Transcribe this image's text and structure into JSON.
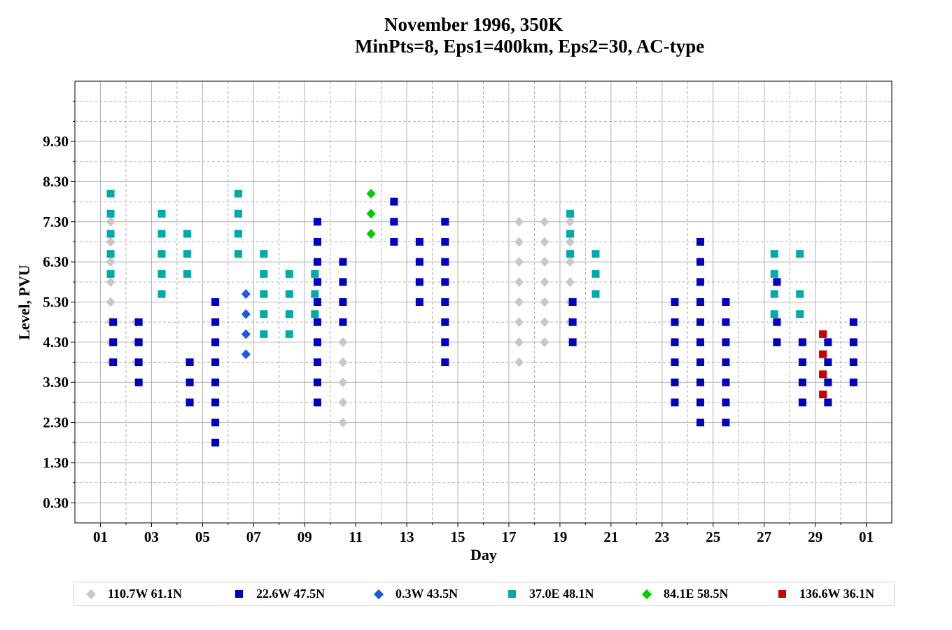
{
  "chart_data": {
    "type": "scatter",
    "title": "November 1996, 350K",
    "subtitle": "MinPts=8, Eps1=400km, Eps2=30, AC-type",
    "xlabel": "Day",
    "ylabel": "Level, PVU",
    "xlim": [
      0.0,
      32.0
    ],
    "ylim": [
      -0.2,
      10.8
    ],
    "xticks": [
      "01",
      "03",
      "05",
      "07",
      "09",
      "11",
      "13",
      "15",
      "17",
      "19",
      "21",
      "23",
      "25",
      "27",
      "29",
      "01"
    ],
    "xtick_values": [
      1,
      3,
      5,
      7,
      9,
      11,
      13,
      15,
      17,
      19,
      21,
      23,
      25,
      27,
      29,
      31
    ],
    "yticks": [
      "0.30",
      "1.30",
      "2.30",
      "3.30",
      "4.30",
      "5.30",
      "6.30",
      "7.30",
      "8.30",
      "9.30"
    ],
    "ytick_values": [
      0.3,
      1.3,
      2.3,
      3.3,
      4.3,
      5.3,
      6.3,
      7.3,
      8.3,
      9.3
    ],
    "minor_ytick_values": [
      0.8,
      1.8,
      2.8,
      3.8,
      4.8,
      5.8,
      6.8,
      7.8,
      8.8,
      9.8,
      10.3
    ],
    "grid": true,
    "legend_position": "bottom",
    "series": [
      {
        "name": "110.7W 61.1N",
        "color": "#c8c8c8",
        "marker": "diamond",
        "points": [
          [
            1.4,
            3.8
          ],
          [
            1.4,
            4.3
          ],
          [
            1.4,
            4.8
          ],
          [
            1.4,
            5.3
          ],
          [
            1.4,
            5.8
          ],
          [
            1.4,
            6.3
          ],
          [
            1.4,
            6.8
          ],
          [
            1.4,
            7.3
          ],
          [
            2.4,
            3.8
          ],
          [
            2.4,
            4.3
          ],
          [
            2.4,
            4.8
          ],
          [
            10.5,
            2.3
          ],
          [
            10.5,
            2.8
          ],
          [
            10.5,
            3.3
          ],
          [
            10.5,
            3.8
          ],
          [
            10.5,
            4.3
          ],
          [
            17.4,
            3.8
          ],
          [
            17.4,
            4.3
          ],
          [
            17.4,
            4.8
          ],
          [
            17.4,
            5.3
          ],
          [
            17.4,
            5.8
          ],
          [
            17.4,
            6.3
          ],
          [
            17.4,
            6.8
          ],
          [
            17.4,
            7.3
          ],
          [
            18.4,
            4.3
          ],
          [
            18.4,
            4.8
          ],
          [
            18.4,
            5.3
          ],
          [
            18.4,
            5.8
          ],
          [
            18.4,
            6.3
          ],
          [
            18.4,
            6.8
          ],
          [
            18.4,
            7.3
          ],
          [
            19.4,
            4.8
          ],
          [
            19.4,
            5.3
          ],
          [
            19.4,
            5.8
          ],
          [
            19.4,
            6.3
          ],
          [
            19.4,
            6.8
          ],
          [
            19.4,
            7.3
          ]
        ]
      },
      {
        "name": "22.6W 47.5N",
        "color": "#0000c0",
        "marker": "square",
        "points": [
          [
            1.5,
            3.8
          ],
          [
            1.5,
            4.3
          ],
          [
            1.5,
            4.8
          ],
          [
            2.5,
            3.3
          ],
          [
            2.5,
            3.8
          ],
          [
            2.5,
            4.3
          ],
          [
            2.5,
            4.8
          ],
          [
            4.5,
            2.8
          ],
          [
            4.5,
            3.3
          ],
          [
            4.5,
            3.8
          ],
          [
            5.5,
            1.8
          ],
          [
            5.5,
            2.3
          ],
          [
            5.5,
            2.8
          ],
          [
            5.5,
            3.3
          ],
          [
            5.5,
            3.8
          ],
          [
            5.5,
            4.3
          ],
          [
            5.5,
            4.8
          ],
          [
            5.5,
            5.3
          ],
          [
            9.5,
            2.8
          ],
          [
            9.5,
            3.3
          ],
          [
            9.5,
            3.8
          ],
          [
            9.5,
            4.3
          ],
          [
            9.5,
            4.8
          ],
          [
            9.5,
            5.3
          ],
          [
            9.5,
            5.8
          ],
          [
            9.5,
            6.3
          ],
          [
            9.5,
            6.8
          ],
          [
            9.5,
            7.3
          ],
          [
            10.5,
            4.8
          ],
          [
            10.5,
            5.3
          ],
          [
            10.5,
            5.8
          ],
          [
            10.5,
            6.3
          ],
          [
            12.5,
            6.8
          ],
          [
            12.5,
            7.3
          ],
          [
            12.5,
            7.8
          ],
          [
            13.5,
            5.3
          ],
          [
            13.5,
            5.8
          ],
          [
            13.5,
            6.3
          ],
          [
            13.5,
            6.8
          ],
          [
            14.5,
            3.8
          ],
          [
            14.5,
            4.3
          ],
          [
            14.5,
            4.8
          ],
          [
            14.5,
            5.3
          ],
          [
            14.5,
            5.8
          ],
          [
            14.5,
            6.3
          ],
          [
            14.5,
            6.8
          ],
          [
            14.5,
            7.3
          ],
          [
            19.5,
            4.3
          ],
          [
            19.5,
            4.8
          ],
          [
            19.5,
            5.3
          ],
          [
            23.5,
            2.8
          ],
          [
            23.5,
            3.3
          ],
          [
            23.5,
            3.8
          ],
          [
            23.5,
            4.3
          ],
          [
            23.5,
            4.8
          ],
          [
            23.5,
            5.3
          ],
          [
            24.5,
            2.3
          ],
          [
            24.5,
            2.8
          ],
          [
            24.5,
            3.3
          ],
          [
            24.5,
            3.8
          ],
          [
            24.5,
            4.3
          ],
          [
            24.5,
            4.8
          ],
          [
            24.5,
            5.3
          ],
          [
            24.5,
            5.8
          ],
          [
            24.5,
            6.3
          ],
          [
            24.5,
            6.8
          ],
          [
            25.5,
            2.3
          ],
          [
            25.5,
            2.8
          ],
          [
            25.5,
            3.3
          ],
          [
            25.5,
            3.8
          ],
          [
            25.5,
            4.3
          ],
          [
            25.5,
            4.8
          ],
          [
            25.5,
            5.3
          ],
          [
            27.5,
            4.3
          ],
          [
            27.5,
            4.8
          ],
          [
            27.5,
            5.8
          ],
          [
            28.5,
            2.8
          ],
          [
            28.5,
            3.3
          ],
          [
            28.5,
            3.8
          ],
          [
            28.5,
            4.3
          ],
          [
            29.5,
            2.8
          ],
          [
            29.5,
            3.3
          ],
          [
            29.5,
            3.8
          ],
          [
            29.5,
            4.3
          ],
          [
            30.5,
            3.3
          ],
          [
            30.5,
            3.8
          ],
          [
            30.5,
            4.3
          ],
          [
            30.5,
            4.8
          ]
        ]
      },
      {
        "name": "0.3W 43.5N",
        "color": "#1a5ae0",
        "marker": "diamond",
        "points": [
          [
            6.7,
            4.0
          ],
          [
            6.7,
            4.5
          ],
          [
            6.7,
            5.0
          ],
          [
            6.7,
            5.5
          ]
        ]
      },
      {
        "name": "37.0E 48.1N",
        "color": "#00aaaa",
        "marker": "square",
        "points": [
          [
            1.4,
            6.0
          ],
          [
            1.4,
            6.5
          ],
          [
            1.4,
            7.0
          ],
          [
            1.4,
            7.5
          ],
          [
            1.4,
            8.0
          ],
          [
            3.4,
            5.5
          ],
          [
            3.4,
            6.0
          ],
          [
            3.4,
            6.5
          ],
          [
            3.4,
            7.0
          ],
          [
            3.4,
            7.5
          ],
          [
            4.4,
            6.0
          ],
          [
            4.4,
            6.5
          ],
          [
            4.4,
            7.0
          ],
          [
            6.4,
            6.5
          ],
          [
            6.4,
            7.0
          ],
          [
            6.4,
            7.5
          ],
          [
            6.4,
            8.0
          ],
          [
            7.4,
            4.5
          ],
          [
            7.4,
            5.0
          ],
          [
            7.4,
            5.5
          ],
          [
            7.4,
            6.0
          ],
          [
            7.4,
            6.5
          ],
          [
            8.4,
            4.5
          ],
          [
            8.4,
            5.0
          ],
          [
            8.4,
            5.5
          ],
          [
            8.4,
            6.0
          ],
          [
            9.4,
            5.0
          ],
          [
            9.4,
            5.5
          ],
          [
            9.4,
            6.0
          ],
          [
            19.4,
            6.5
          ],
          [
            19.4,
            7.0
          ],
          [
            19.4,
            7.5
          ],
          [
            20.4,
            5.5
          ],
          [
            20.4,
            6.0
          ],
          [
            20.4,
            6.5
          ],
          [
            27.4,
            5.0
          ],
          [
            27.4,
            5.5
          ],
          [
            27.4,
            6.0
          ],
          [
            27.4,
            6.5
          ],
          [
            28.4,
            5.0
          ],
          [
            28.4,
            5.5
          ],
          [
            28.4,
            6.5
          ]
        ]
      },
      {
        "name": "84.1E 58.5N",
        "color": "#00cc00",
        "marker": "diamond",
        "points": [
          [
            11.6,
            7.0
          ],
          [
            11.6,
            7.5
          ],
          [
            11.6,
            8.0
          ]
        ]
      },
      {
        "name": "136.6W 36.1N",
        "color": "#cc0000",
        "marker": "square",
        "points": [
          [
            29.3,
            3.0
          ],
          [
            29.3,
            3.5
          ],
          [
            29.3,
            4.0
          ],
          [
            29.3,
            4.5
          ]
        ]
      }
    ]
  }
}
